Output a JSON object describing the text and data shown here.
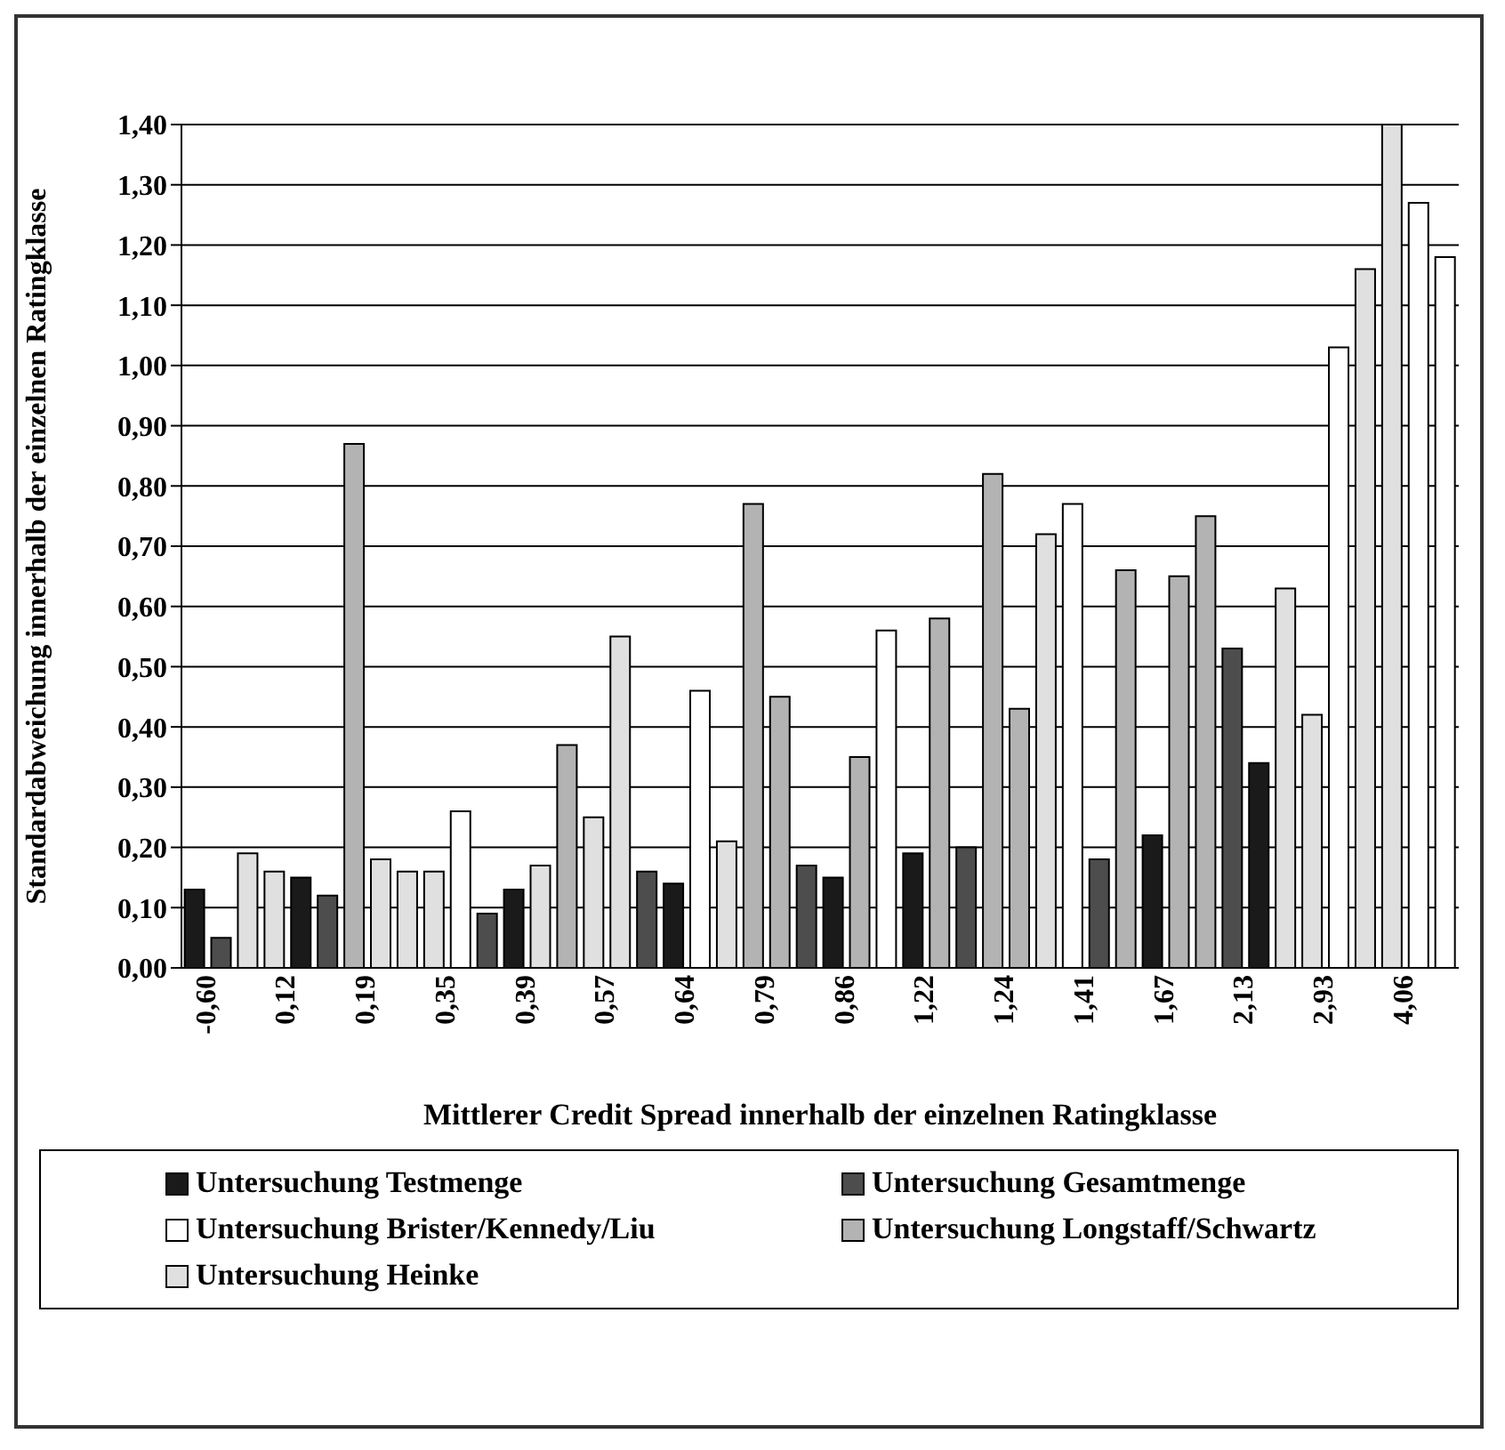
{
  "chart_data": {
    "type": "bar",
    "stacked": true,
    "xlabel": "Mittlerer Credit Spread innerhalb der einzelnen Ratingklasse",
    "ylabel": "Standardabweichung innerhalb der einzelnen Ratingklasse",
    "categories": [
      "-0,60",
      null,
      null,
      "0,12",
      null,
      null,
      "0,19",
      null,
      null,
      "0,35",
      null,
      null,
      "0,39",
      null,
      null,
      "0,57",
      null,
      null,
      "0,64",
      null,
      null,
      "0,79",
      null,
      null,
      "0,86",
      null,
      null,
      "1,22",
      null,
      null,
      "1,24",
      null,
      null,
      "1,41",
      null,
      null,
      "1,67",
      null,
      null,
      "2,13",
      null,
      null,
      "2,93",
      null,
      null,
      "4,06",
      null,
      null
    ],
    "series": [
      {
        "name": "Untersuchung Testmenge",
        "color": "#1a1a1a",
        "values": [
          0.13,
          null,
          null,
          null,
          0.15,
          null,
          null,
          null,
          null,
          null,
          null,
          null,
          0.13,
          null,
          null,
          null,
          null,
          null,
          0.14,
          null,
          null,
          null,
          null,
          null,
          0.15,
          null,
          null,
          0.19,
          null,
          null,
          null,
          null,
          null,
          null,
          null,
          null,
          0.22,
          null,
          null,
          null,
          0.34,
          null,
          null,
          null,
          null,
          null,
          null,
          null
        ]
      },
      {
        "name": "Untersuchung Gesamtmenge",
        "color": "#4d4d4d",
        "values": [
          null,
          0.05,
          null,
          null,
          null,
          0.12,
          null,
          null,
          null,
          null,
          null,
          0.09,
          null,
          null,
          null,
          null,
          null,
          0.16,
          null,
          null,
          null,
          null,
          null,
          0.17,
          null,
          null,
          null,
          null,
          null,
          0.2,
          null,
          null,
          null,
          null,
          0.18,
          null,
          null,
          null,
          null,
          0.53,
          null,
          null,
          null,
          null,
          null,
          null,
          null,
          null
        ]
      },
      {
        "name": "Untersuchung Brister/Kennedy/Liu",
        "color": "#ffffff",
        "values": [
          null,
          null,
          null,
          null,
          null,
          null,
          null,
          null,
          null,
          null,
          0.26,
          null,
          null,
          null,
          null,
          null,
          null,
          null,
          null,
          0.46,
          null,
          null,
          null,
          null,
          null,
          null,
          0.56,
          null,
          null,
          null,
          null,
          null,
          null,
          0.77,
          null,
          null,
          null,
          null,
          null,
          null,
          null,
          null,
          null,
          1.03,
          null,
          null,
          1.27,
          1.18
        ]
      },
      {
        "name": "Untersuchung Longstaff/Schwartz",
        "color": "#b3b3b3",
        "values": [
          null,
          null,
          null,
          null,
          null,
          null,
          0.87,
          null,
          null,
          null,
          null,
          null,
          null,
          null,
          0.37,
          null,
          null,
          null,
          null,
          null,
          null,
          0.77,
          0.45,
          null,
          null,
          0.35,
          null,
          null,
          0.58,
          null,
          0.82,
          0.43,
          null,
          null,
          null,
          0.66,
          null,
          0.65,
          0.75,
          null,
          null,
          null,
          null,
          null,
          null,
          null,
          null,
          null
        ]
      },
      {
        "name": "Untersuchung Heinke",
        "color": "#e0e0e0",
        "values": [
          null,
          null,
          0.19,
          0.16,
          null,
          null,
          null,
          0.18,
          0.16,
          0.16,
          null,
          null,
          null,
          0.17,
          null,
          0.25,
          0.55,
          null,
          null,
          null,
          0.21,
          null,
          null,
          null,
          null,
          null,
          null,
          null,
          null,
          null,
          null,
          null,
          0.72,
          null,
          null,
          null,
          null,
          null,
          null,
          null,
          null,
          0.63,
          0.42,
          null,
          1.16,
          1.4,
          null,
          null
        ]
      }
    ],
    "ylim": [
      0,
      1.4
    ],
    "yticks": [
      {
        "value": 0,
        "label": "0,00"
      },
      {
        "value": 0.1,
        "label": "0,10"
      },
      {
        "value": 0.2,
        "label": "0,20"
      },
      {
        "value": 0.3,
        "label": "0,30"
      },
      {
        "value": 0.4,
        "label": "0,40"
      },
      {
        "value": 0.5,
        "label": "0,50"
      },
      {
        "value": 0.6,
        "label": "0,60"
      },
      {
        "value": 0.7,
        "label": "0,70"
      },
      {
        "value": 0.8,
        "label": "0,80"
      },
      {
        "value": 0.9,
        "label": "0,90"
      },
      {
        "value": 1,
        "label": "1,00"
      },
      {
        "value": 1.1,
        "label": "1,10"
      },
      {
        "value": 1.2,
        "label": "1,20"
      },
      {
        "value": 1.3,
        "label": "1,30"
      },
      {
        "value": 1.4,
        "label": "1,40"
      }
    ],
    "grid": "y",
    "legend": "bottom"
  }
}
